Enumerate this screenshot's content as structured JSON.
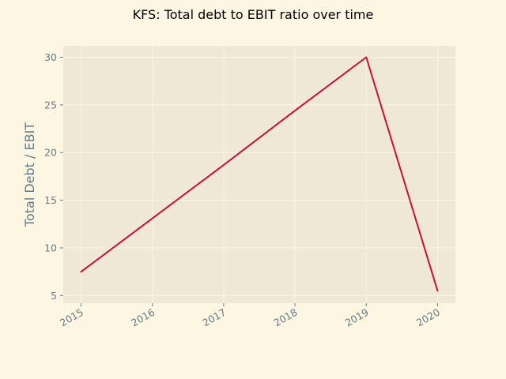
{
  "chart_data": {
    "type": "line",
    "title": "KFS: Total debt to EBIT ratio over time",
    "xlabel": "",
    "ylabel": "Total Debt / EBIT",
    "x": [
      "2015",
      "2016",
      "2017",
      "2018",
      "2019",
      "2020"
    ],
    "series": [
      {
        "values": [
          7.5,
          13.1,
          18.7,
          24.4,
          30.0,
          5.5
        ],
        "color": "#cb0e3a"
      }
    ],
    "xlim": [
      2014.75,
      2020.25
    ],
    "ylim": [
      4.2,
      31.2
    ],
    "yticks": [
      5,
      10,
      15,
      20,
      25,
      30
    ],
    "grid": true,
    "legend": "none",
    "colors": {
      "page_background": "#fdf6e3",
      "plot_background": "#eee8d5",
      "grid": "#fdf6e3",
      "tick_text": "#657b83"
    }
  }
}
